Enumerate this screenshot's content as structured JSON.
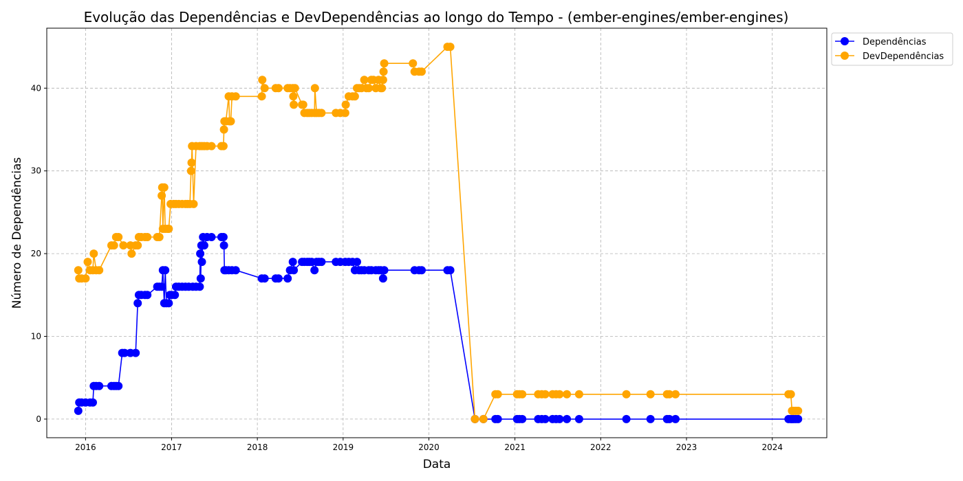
{
  "chart_data": {
    "type": "line",
    "title": "Evolução das Dependências e DevDependências ao longo do Tempo - (ember-engines/ember-engines)",
    "xlabel": "Data",
    "ylabel": "Número de Dependências",
    "xlim": [
      "2015-07-20",
      "2024-08-20"
    ],
    "ylim": [
      -2.25,
      47.25
    ],
    "x_ticks": [
      "2016",
      "2017",
      "2018",
      "2019",
      "2020",
      "2021",
      "2022",
      "2023",
      "2024"
    ],
    "y_ticks": [
      0,
      10,
      20,
      30,
      40
    ],
    "grid": true,
    "legend_position": "top-right",
    "series": [
      {
        "name": "Dependências",
        "color": "#0000ff",
        "points": [
          [
            "2015-12-01",
            1
          ],
          [
            "2015-12-05",
            2
          ],
          [
            "2015-12-15",
            2
          ],
          [
            "2016-01-01",
            2
          ],
          [
            "2016-01-20",
            2
          ],
          [
            "2016-02-01",
            2
          ],
          [
            "2016-02-05",
            4
          ],
          [
            "2016-02-15",
            4
          ],
          [
            "2016-02-28",
            4
          ],
          [
            "2016-04-20",
            4
          ],
          [
            "2016-05-01",
            4
          ],
          [
            "2016-05-10",
            4
          ],
          [
            "2016-05-20",
            4
          ],
          [
            "2016-06-05",
            8
          ],
          [
            "2016-06-15",
            8
          ],
          [
            "2016-07-10",
            8
          ],
          [
            "2016-08-01",
            8
          ],
          [
            "2016-08-10",
            14
          ],
          [
            "2016-08-15",
            15
          ],
          [
            "2016-08-25",
            15
          ],
          [
            "2016-09-10",
            15
          ],
          [
            "2016-09-20",
            15
          ],
          [
            "2016-11-01",
            16
          ],
          [
            "2016-11-10",
            16
          ],
          [
            "2016-11-20",
            16
          ],
          [
            "2016-11-25",
            18
          ],
          [
            "2016-12-01",
            14
          ],
          [
            "2016-12-05",
            18
          ],
          [
            "2016-12-10",
            14
          ],
          [
            "2016-12-20",
            14
          ],
          [
            "2016-12-25",
            15
          ],
          [
            "2017-01-01",
            15
          ],
          [
            "2017-01-15",
            15
          ],
          [
            "2017-01-20",
            16
          ],
          [
            "2017-02-01",
            16
          ],
          [
            "2017-02-15",
            16
          ],
          [
            "2017-03-01",
            16
          ],
          [
            "2017-03-15",
            16
          ],
          [
            "2017-04-01",
            16
          ],
          [
            "2017-04-15",
            16
          ],
          [
            "2017-05-01",
            16
          ],
          [
            "2017-05-03",
            20
          ],
          [
            "2017-05-05",
            17
          ],
          [
            "2017-05-08",
            21
          ],
          [
            "2017-05-10",
            19
          ],
          [
            "2017-05-15",
            22
          ],
          [
            "2017-05-20",
            21
          ],
          [
            "2017-06-01",
            22
          ],
          [
            "2017-06-20",
            22
          ],
          [
            "2017-08-01",
            22
          ],
          [
            "2017-08-10",
            22
          ],
          [
            "2017-08-12",
            21
          ],
          [
            "2017-08-14",
            18
          ],
          [
            "2017-08-20",
            18
          ],
          [
            "2017-09-01",
            18
          ],
          [
            "2017-09-15",
            18
          ],
          [
            "2017-10-01",
            18
          ],
          [
            "2018-01-20",
            17
          ],
          [
            "2018-02-01",
            17
          ],
          [
            "2018-03-20",
            17
          ],
          [
            "2018-04-01",
            17
          ],
          [
            "2018-05-10",
            17
          ],
          [
            "2018-05-20",
            18
          ],
          [
            "2018-06-01",
            19
          ],
          [
            "2018-06-05",
            18
          ],
          [
            "2018-07-10",
            19
          ],
          [
            "2018-07-20",
            19
          ],
          [
            "2018-08-01",
            19
          ],
          [
            "2018-08-10",
            19
          ],
          [
            "2018-08-20",
            19
          ],
          [
            "2018-09-01",
            18
          ],
          [
            "2018-09-10",
            19
          ],
          [
            "2018-09-20",
            19
          ],
          [
            "2018-10-01",
            19
          ],
          [
            "2018-12-01",
            19
          ],
          [
            "2018-12-20",
            19
          ],
          [
            "2019-01-10",
            19
          ],
          [
            "2019-01-25",
            19
          ],
          [
            "2019-02-10",
            19
          ],
          [
            "2019-02-20",
            18
          ],
          [
            "2019-03-01",
            19
          ],
          [
            "2019-03-10",
            18
          ],
          [
            "2019-03-20",
            18
          ],
          [
            "2019-04-01",
            18
          ],
          [
            "2019-04-20",
            18
          ],
          [
            "2019-05-01",
            18
          ],
          [
            "2019-05-20",
            18
          ],
          [
            "2019-06-01",
            18
          ],
          [
            "2019-06-10",
            18
          ],
          [
            "2019-06-20",
            17
          ],
          [
            "2019-06-25",
            18
          ],
          [
            "2019-11-01",
            18
          ],
          [
            "2019-11-20",
            18
          ],
          [
            "2019-12-01",
            18
          ],
          [
            "2020-03-20",
            18
          ],
          [
            "2020-04-01",
            18
          ],
          [
            "2020-07-15",
            0
          ],
          [
            "2020-08-20",
            0
          ],
          [
            "2020-10-10",
            0
          ],
          [
            "2020-10-20",
            0
          ],
          [
            "2021-01-10",
            0
          ],
          [
            "2021-01-20",
            0
          ],
          [
            "2021-02-01",
            0
          ],
          [
            "2021-04-10",
            0
          ],
          [
            "2021-04-25",
            0
          ],
          [
            "2021-05-10",
            0
          ],
          [
            "2021-06-10",
            0
          ],
          [
            "2021-06-25",
            0
          ],
          [
            "2021-07-10",
            0
          ],
          [
            "2021-08-10",
            0
          ],
          [
            "2021-10-01",
            0
          ],
          [
            "2022-04-20",
            0
          ],
          [
            "2022-08-01",
            0
          ],
          [
            "2022-10-10",
            0
          ],
          [
            "2022-10-20",
            0
          ],
          [
            "2022-11-15",
            0
          ],
          [
            "2024-03-10",
            0
          ],
          [
            "2024-03-20",
            0
          ],
          [
            "2024-03-25",
            0
          ],
          [
            "2024-04-01",
            0
          ],
          [
            "2024-04-10",
            0
          ],
          [
            "2024-04-20",
            0
          ]
        ]
      },
      {
        "name": "DevDependências",
        "color": "#ffa500",
        "points": [
          [
            "2015-12-01",
            18
          ],
          [
            "2015-12-05",
            17
          ],
          [
            "2015-12-15",
            17
          ],
          [
            "2016-01-01",
            17
          ],
          [
            "2016-01-10",
            19
          ],
          [
            "2016-01-20",
            18
          ],
          [
            "2016-02-01",
            18
          ],
          [
            "2016-02-05",
            20
          ],
          [
            "2016-02-15",
            18
          ],
          [
            "2016-02-28",
            18
          ],
          [
            "2016-04-20",
            21
          ],
          [
            "2016-05-01",
            21
          ],
          [
            "2016-05-10",
            22
          ],
          [
            "2016-05-20",
            22
          ],
          [
            "2016-06-10",
            21
          ],
          [
            "2016-07-10",
            21
          ],
          [
            "2016-07-15",
            20
          ],
          [
            "2016-08-01",
            21
          ],
          [
            "2016-08-10",
            21
          ],
          [
            "2016-08-15",
            22
          ],
          [
            "2016-08-25",
            22
          ],
          [
            "2016-09-10",
            22
          ],
          [
            "2016-09-20",
            22
          ],
          [
            "2016-11-01",
            22
          ],
          [
            "2016-11-10",
            22
          ],
          [
            "2016-11-20",
            27
          ],
          [
            "2016-11-22",
            28
          ],
          [
            "2016-11-25",
            23
          ],
          [
            "2016-12-01",
            28
          ],
          [
            "2016-12-05",
            23
          ],
          [
            "2016-12-15",
            23
          ],
          [
            "2016-12-20",
            23
          ],
          [
            "2016-12-28",
            26
          ],
          [
            "2017-01-10",
            26
          ],
          [
            "2017-01-20",
            26
          ],
          [
            "2017-02-01",
            26
          ],
          [
            "2017-02-15",
            26
          ],
          [
            "2017-03-01",
            26
          ],
          [
            "2017-03-10",
            26
          ],
          [
            "2017-03-20",
            26
          ],
          [
            "2017-03-25",
            30
          ],
          [
            "2017-03-27",
            31
          ],
          [
            "2017-03-29",
            33
          ],
          [
            "2017-04-05",
            26
          ],
          [
            "2017-04-15",
            33
          ],
          [
            "2017-05-01",
            33
          ],
          [
            "2017-05-10",
            33
          ],
          [
            "2017-05-20",
            33
          ],
          [
            "2017-06-01",
            33
          ],
          [
            "2017-06-20",
            33
          ],
          [
            "2017-08-01",
            33
          ],
          [
            "2017-08-10",
            33
          ],
          [
            "2017-08-12",
            35
          ],
          [
            "2017-08-14",
            36
          ],
          [
            "2017-08-20",
            36
          ],
          [
            "2017-09-01",
            39
          ],
          [
            "2017-09-05",
            36
          ],
          [
            "2017-09-10",
            36
          ],
          [
            "2017-09-15",
            39
          ],
          [
            "2017-10-01",
            39
          ],
          [
            "2018-01-20",
            39
          ],
          [
            "2018-01-22",
            41
          ],
          [
            "2018-02-01",
            40
          ],
          [
            "2018-03-20",
            40
          ],
          [
            "2018-04-01",
            40
          ],
          [
            "2018-05-10",
            40
          ],
          [
            "2018-05-20",
            40
          ],
          [
            "2018-06-01",
            40
          ],
          [
            "2018-06-03",
            39
          ],
          [
            "2018-06-05",
            38
          ],
          [
            "2018-06-10",
            40
          ],
          [
            "2018-07-10",
            38
          ],
          [
            "2018-07-15",
            38
          ],
          [
            "2018-07-20",
            37
          ],
          [
            "2018-08-01",
            37
          ],
          [
            "2018-08-10",
            37
          ],
          [
            "2018-08-20",
            37
          ],
          [
            "2018-09-01",
            37
          ],
          [
            "2018-09-03",
            40
          ],
          [
            "2018-09-10",
            37
          ],
          [
            "2018-09-20",
            37
          ],
          [
            "2018-10-01",
            37
          ],
          [
            "2018-12-01",
            37
          ],
          [
            "2018-12-20",
            37
          ],
          [
            "2019-01-10",
            37
          ],
          [
            "2019-01-12",
            38
          ],
          [
            "2019-01-25",
            39
          ],
          [
            "2019-02-10",
            39
          ],
          [
            "2019-02-20",
            39
          ],
          [
            "2019-03-01",
            40
          ],
          [
            "2019-03-10",
            40
          ],
          [
            "2019-03-20",
            40
          ],
          [
            "2019-04-01",
            41
          ],
          [
            "2019-04-10",
            40
          ],
          [
            "2019-04-20",
            40
          ],
          [
            "2019-05-01",
            41
          ],
          [
            "2019-05-10",
            41
          ],
          [
            "2019-05-20",
            40
          ],
          [
            "2019-06-01",
            41
          ],
          [
            "2019-06-10",
            40
          ],
          [
            "2019-06-15",
            40
          ],
          [
            "2019-06-20",
            41
          ],
          [
            "2019-06-22",
            42
          ],
          [
            "2019-06-25",
            43
          ],
          [
            "2019-10-25",
            43
          ],
          [
            "2019-11-01",
            42
          ],
          [
            "2019-11-20",
            42
          ],
          [
            "2019-12-01",
            42
          ],
          [
            "2020-03-20",
            45
          ],
          [
            "2020-04-01",
            45
          ],
          [
            "2020-07-15",
            0
          ],
          [
            "2020-08-20",
            0
          ],
          [
            "2020-10-10",
            3
          ],
          [
            "2020-10-20",
            3
          ],
          [
            "2021-01-10",
            3
          ],
          [
            "2021-01-20",
            3
          ],
          [
            "2021-02-01",
            3
          ],
          [
            "2021-04-10",
            3
          ],
          [
            "2021-04-25",
            3
          ],
          [
            "2021-05-10",
            3
          ],
          [
            "2021-06-10",
            3
          ],
          [
            "2021-06-25",
            3
          ],
          [
            "2021-07-10",
            3
          ],
          [
            "2021-08-10",
            3
          ],
          [
            "2021-10-01",
            3
          ],
          [
            "2022-04-20",
            3
          ],
          [
            "2022-08-01",
            3
          ],
          [
            "2022-10-10",
            3
          ],
          [
            "2022-10-20",
            3
          ],
          [
            "2022-11-15",
            3
          ],
          [
            "2024-03-10",
            3
          ],
          [
            "2024-03-20",
            3
          ],
          [
            "2024-03-25",
            1
          ],
          [
            "2024-04-01",
            1
          ],
          [
            "2024-04-10",
            1
          ],
          [
            "2024-04-20",
            1
          ]
        ]
      }
    ]
  }
}
